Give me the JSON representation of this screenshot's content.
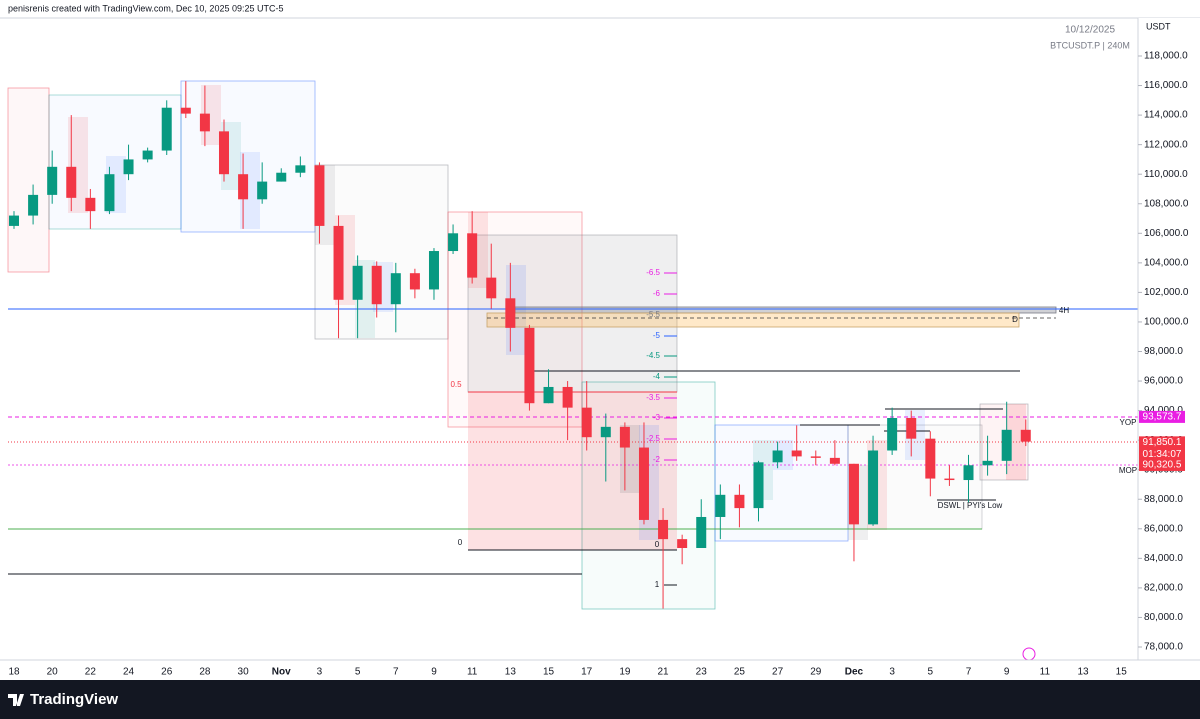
{
  "header": {
    "byline": "penisrenis created with TradingView.com, Dec 10, 2025 09:25 UTC-5"
  },
  "footer": {
    "brand": "TradingView"
  },
  "chart_data": {
    "type": "candlestick",
    "title": "BTCUSDT.P | 240M",
    "legend_date": "10/12/2025",
    "y_label": "USDT",
    "up_color": "#089981",
    "down_color": "#f23645",
    "x": [
      "Oct 18",
      "Oct 19",
      "Oct 20",
      "Oct 21",
      "Oct 22",
      "Oct 23",
      "Oct 24",
      "Oct 25",
      "Oct 26",
      "Oct 27",
      "Oct 28",
      "Oct 29",
      "Oct 30",
      "Oct 31",
      "Nov 1",
      "Nov 2",
      "Nov 3",
      "Nov 4",
      "Nov 5",
      "Nov 6",
      "Nov 7",
      "Nov 8",
      "Nov 9",
      "Nov 10",
      "Nov 11",
      "Nov 12",
      "Nov 13",
      "Nov 14",
      "Nov 15",
      "Nov 16",
      "Nov 17",
      "Nov 18",
      "Nov 19",
      "Nov 20",
      "Nov 21",
      "Nov 22",
      "Nov 23",
      "Nov 24",
      "Nov 25",
      "Nov 26",
      "Nov 27",
      "Nov 28",
      "Nov 29",
      "Nov 30",
      "Dec 1",
      "Dec 2",
      "Dec 3",
      "Dec 4",
      "Dec 5",
      "Dec 6",
      "Dec 7",
      "Dec 8",
      "Dec 9",
      "Dec 10"
    ],
    "open": [
      106500,
      107200,
      108600,
      110500,
      108400,
      107500,
      110000,
      111000,
      111600,
      114500,
      114100,
      112900,
      110000,
      108300,
      109500,
      110100,
      110600,
      106500,
      101500,
      103800,
      101200,
      103300,
      102200,
      104800,
      106000,
      103000,
      101600,
      99600,
      94500,
      95600,
      94200,
      92200,
      92900,
      91500,
      86600,
      85300,
      84700,
      86800,
      88300,
      87400,
      90500,
      91300,
      90900,
      90800,
      90400,
      86300,
      91300,
      93500,
      92100,
      89400,
      89300,
      90300,
      90600,
      92700
    ],
    "high": [
      107500,
      109300,
      111600,
      114000,
      109000,
      110500,
      112000,
      111800,
      115000,
      116300,
      116000,
      113700,
      111400,
      110800,
      110400,
      111200,
      110800,
      107200,
      104500,
      104100,
      104000,
      103600,
      105000,
      106600,
      107500,
      105300,
      104000,
      99800,
      96800,
      96000,
      96000,
      93800,
      93200,
      93200,
      87400,
      85600,
      88000,
      89000,
      89000,
      90600,
      91900,
      93000,
      91300,
      92000,
      90400,
      92300,
      94200,
      94000,
      92600,
      90300,
      91000,
      92300,
      94600,
      93400
    ],
    "low": [
      106300,
      106600,
      108000,
      107500,
      106300,
      107300,
      109600,
      110800,
      111300,
      113800,
      111900,
      109500,
      106300,
      108000,
      109500,
      109800,
      105300,
      98900,
      98900,
      100300,
      99300,
      101600,
      101500,
      104600,
      102600,
      100900,
      98000,
      94000,
      94500,
      92000,
      91300,
      89200,
      88600,
      86300,
      80600,
      83600,
      84700,
      85300,
      86100,
      86500,
      90100,
      90600,
      90300,
      90300,
      83800,
      86200,
      91000,
      90900,
      88200,
      88900,
      87800,
      89600,
      89700,
      91600
    ],
    "close": [
      107200,
      108600,
      110500,
      108400,
      107500,
      110000,
      111000,
      111600,
      114500,
      114100,
      112900,
      110000,
      108300,
      109500,
      110100,
      110600,
      106500,
      101500,
      103800,
      101200,
      103300,
      102200,
      104800,
      106000,
      103000,
      101600,
      99600,
      94500,
      95600,
      94200,
      92200,
      92900,
      91500,
      86600,
      85300,
      84700,
      86800,
      88300,
      87400,
      90500,
      91300,
      90900,
      90800,
      90400,
      86300,
      91300,
      93500,
      92100,
      89400,
      89300,
      90300,
      90600,
      92700,
      91900
    ],
    "xticks": [
      {
        "value": "Oct 18",
        "label": "18"
      },
      {
        "value": "Oct 20",
        "label": "20"
      },
      {
        "value": "Oct 22",
        "label": "22"
      },
      {
        "value": "Oct 24",
        "label": "24"
      },
      {
        "value": "Oct 26",
        "label": "26"
      },
      {
        "value": "Oct 28",
        "label": "28"
      },
      {
        "value": "Oct 30",
        "label": "30"
      },
      {
        "value": "Nov 1",
        "label": "Nov"
      },
      {
        "value": "Nov 3",
        "label": "3"
      },
      {
        "value": "Nov 5",
        "label": "5"
      },
      {
        "value": "Nov 7",
        "label": "7"
      },
      {
        "value": "Nov 9",
        "label": "9"
      },
      {
        "value": "Nov 11",
        "label": "11"
      },
      {
        "value": "Nov 13",
        "label": "13"
      },
      {
        "value": "Nov 15",
        "label": "15"
      },
      {
        "value": "Nov 17",
        "label": "17"
      },
      {
        "value": "Nov 19",
        "label": "19"
      },
      {
        "value": "Nov 21",
        "label": "21"
      },
      {
        "value": "Nov 23",
        "label": "23"
      },
      {
        "value": "Nov 25",
        "label": "25"
      },
      {
        "value": "Nov 27",
        "label": "27"
      },
      {
        "value": "Nov 29",
        "label": "29"
      },
      {
        "value": "Dec 1",
        "label": "Dec"
      },
      {
        "value": "Dec 3",
        "label": "3"
      },
      {
        "value": "Dec 5",
        "label": "5"
      },
      {
        "value": "Dec 7",
        "label": "7"
      },
      {
        "value": "Dec 9",
        "label": "9"
      },
      {
        "value": "Dec 11",
        "label": "11"
      },
      {
        "value": "Dec 13",
        "label": "13"
      },
      {
        "value": "Dec 15",
        "label": "15"
      }
    ],
    "ylim": [
      77120,
      120572
    ],
    "yticks": [
      {
        "value": 78000,
        "label": "78,000.0"
      },
      {
        "value": 80000,
        "label": "80,000.0"
      },
      {
        "value": 82000,
        "label": "82,000.0"
      },
      {
        "value": 84000,
        "label": "84,000.0"
      },
      {
        "value": 86000,
        "label": "86,000.0"
      },
      {
        "value": 88000,
        "label": "88,000.0"
      },
      {
        "value": 90000,
        "label": "90,000.0"
      },
      {
        "value": 92000,
        "label": "92,000.0"
      },
      {
        "value": 94000,
        "label": "94,000.0"
      },
      {
        "value": 96000,
        "label": "96,000.0"
      },
      {
        "value": 98000,
        "label": "98,000.0"
      },
      {
        "value": 100000,
        "label": "100,000.0"
      },
      {
        "value": 102000,
        "label": "102,000.0"
      },
      {
        "value": 104000,
        "label": "104,000.0"
      },
      {
        "value": 106000,
        "label": "106,000.0"
      },
      {
        "value": 108000,
        "label": "108,000.0"
      },
      {
        "value": 110000,
        "label": "110,000.0"
      },
      {
        "value": 112000,
        "label": "112,000.0"
      },
      {
        "value": 114000,
        "label": "114,000.0"
      },
      {
        "value": 116000,
        "label": "116,000.0"
      },
      {
        "value": 118000,
        "label": "118,000.0"
      }
    ],
    "grid": false,
    "price_labels": [
      {
        "value": 93573.7,
        "label": "93,573.7",
        "color": "#e91ee3",
        "tag": "YOP"
      },
      {
        "value": 91850.1,
        "label": "91,850.1",
        "color": "#f23645",
        "countdown": "01:34:07"
      },
      {
        "value": 90320.5,
        "label": "90,320.5",
        "color": "#f23645",
        "tag": "MOP"
      }
    ],
    "annotations": [
      "-6.5",
      "-6",
      "-5.5",
      "-5",
      "-4.5",
      "-4",
      "-3.5",
      "-3",
      "-2.5",
      "-2",
      "0.5",
      "0",
      "0",
      "1",
      "4H",
      "D",
      "DSWL | PYI's Low"
    ]
  }
}
